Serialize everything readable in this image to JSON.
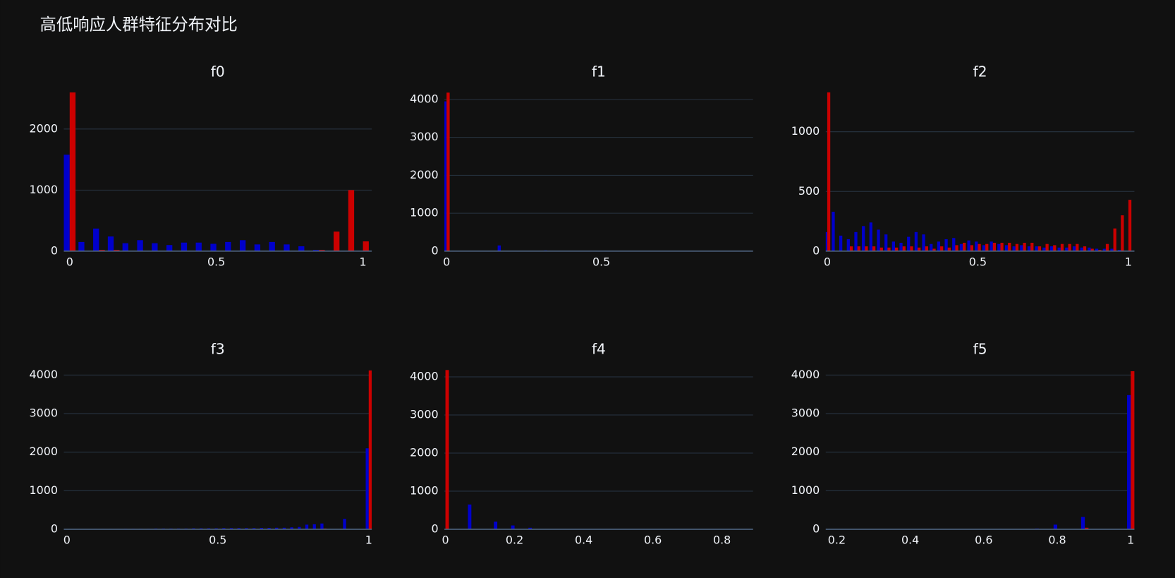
{
  "title": "高低响应人群特征分布对比",
  "chart_data": [
    {
      "type": "bar",
      "title": "f0",
      "x": [
        0,
        0.05,
        0.1,
        0.15,
        0.2,
        0.25,
        0.3,
        0.35,
        0.4,
        0.45,
        0.5,
        0.55,
        0.6,
        0.65,
        0.7,
        0.75,
        0.8,
        0.85,
        0.9,
        0.95,
        1
      ],
      "series": [
        {
          "color": "#0000cc",
          "values": [
            1580,
            150,
            370,
            240,
            130,
            180,
            130,
            100,
            140,
            140,
            120,
            150,
            180,
            110,
            150,
            110,
            80,
            20,
            0,
            0,
            0
          ]
        },
        {
          "color": "#cc0000",
          "values": [
            2600,
            0,
            20,
            20,
            0,
            0,
            0,
            0,
            0,
            0,
            0,
            0,
            0,
            0,
            0,
            0,
            0,
            20,
            320,
            1000,
            160
          ]
        }
      ],
      "xlim": [
        -0.02,
        1.03
      ],
      "ylim": [
        0,
        2640
      ],
      "xticks": [
        0,
        0.5,
        1
      ],
      "yticks": [
        0,
        1000,
        2000
      ],
      "grid": true
    },
    {
      "type": "bar",
      "title": "f1",
      "x": [
        0,
        0.025,
        0.05,
        0.075,
        0.1,
        0.125,
        0.15,
        0.175,
        0.2,
        0.225,
        0.25,
        0.275,
        0.3,
        0.325,
        0.35,
        0.375,
        0.4,
        0.425,
        0.45,
        0.475,
        0.5,
        0.525,
        0.55,
        0.575,
        0.6,
        0.625,
        0.65,
        0.675,
        0.7,
        0.725,
        0.75,
        0.775,
        0.8,
        0.825,
        0.85,
        0.875,
        0.9,
        0.925,
        0.95,
        0.975
      ],
      "series": [
        {
          "color": "#0000cc",
          "values": [
            3950,
            0,
            0,
            0,
            0,
            0,
            0,
            150,
            0,
            0,
            0,
            0,
            0,
            20,
            0,
            0,
            0,
            0,
            0,
            0,
            0,
            0,
            0,
            0,
            0,
            0,
            0,
            0,
            0,
            0,
            0,
            0,
            0,
            0,
            0,
            0,
            0,
            0,
            0,
            0
          ]
        },
        {
          "color": "#cc0000",
          "values": [
            4180,
            0,
            0,
            0,
            0,
            0,
            0,
            10,
            0,
            0,
            0,
            0,
            0,
            0,
            0,
            0,
            0,
            15,
            0,
            0,
            0,
            0,
            0,
            0,
            0,
            0,
            0,
            0,
            0,
            0,
            0,
            0,
            0,
            0,
            0,
            0,
            0,
            0,
            0,
            0
          ]
        }
      ],
      "xlim": [
        -0.007,
        0.99
      ],
      "ylim": [
        0,
        4250
      ],
      "xticks": [
        0,
        0.5
      ],
      "yticks": [
        0,
        1000,
        2000,
        3000,
        4000
      ],
      "grid": true
    },
    {
      "type": "bar",
      "title": "f2",
      "x": [
        0,
        0.025,
        0.05,
        0.075,
        0.1,
        0.125,
        0.15,
        0.175,
        0.2,
        0.225,
        0.25,
        0.275,
        0.3,
        0.325,
        0.35,
        0.375,
        0.4,
        0.425,
        0.45,
        0.475,
        0.5,
        0.525,
        0.55,
        0.575,
        0.6,
        0.625,
        0.65,
        0.675,
        0.7,
        0.725,
        0.75,
        0.775,
        0.8,
        0.825,
        0.85,
        0.875,
        0.9,
        0.925,
        0.95,
        0.975,
        1
      ],
      "series": [
        {
          "color": "#0000cc",
          "values": [
            160,
            330,
            130,
            100,
            160,
            210,
            240,
            180,
            140,
            80,
            70,
            120,
            160,
            140,
            60,
            80,
            100,
            110,
            60,
            90,
            80,
            50,
            80,
            60,
            50,
            40,
            50,
            40,
            40,
            30,
            40,
            30,
            30,
            40,
            30,
            30,
            20,
            20,
            20,
            10,
            0
          ]
        },
        {
          "color": "#cc0000",
          "values": [
            1330,
            0,
            0,
            40,
            40,
            40,
            40,
            30,
            30,
            30,
            40,
            40,
            30,
            40,
            20,
            40,
            30,
            50,
            70,
            50,
            60,
            60,
            70,
            70,
            70,
            60,
            70,
            70,
            40,
            60,
            50,
            60,
            60,
            60,
            40,
            20,
            10,
            60,
            190,
            300,
            430
          ]
        }
      ],
      "xlim": [
        -0.005,
        1.02
      ],
      "ylim": [
        0,
        1350
      ],
      "xticks": [
        0,
        0.5,
        1
      ],
      "yticks": [
        0,
        500,
        1000
      ],
      "grid": true
    },
    {
      "type": "bar",
      "title": "f3",
      "x": [
        0,
        0.025,
        0.05,
        0.075,
        0.1,
        0.125,
        0.15,
        0.175,
        0.2,
        0.225,
        0.25,
        0.275,
        0.3,
        0.325,
        0.35,
        0.375,
        0.4,
        0.425,
        0.45,
        0.475,
        0.5,
        0.525,
        0.55,
        0.575,
        0.6,
        0.625,
        0.65,
        0.675,
        0.7,
        0.725,
        0.75,
        0.775,
        0.8,
        0.825,
        0.85,
        0.875,
        0.9,
        0.925,
        0.95,
        0.975,
        1
      ],
      "series": [
        {
          "color": "#0000cc",
          "values": [
            5,
            5,
            5,
            5,
            10,
            10,
            10,
            10,
            15,
            15,
            15,
            15,
            20,
            20,
            20,
            20,
            20,
            25,
            25,
            25,
            25,
            30,
            30,
            30,
            30,
            30,
            35,
            35,
            40,
            40,
            50,
            60,
            120,
            130,
            150,
            10,
            0,
            270,
            0,
            0,
            2100
          ]
        },
        {
          "color": "#cc0000",
          "values": [
            0,
            0,
            0,
            0,
            0,
            0,
            0,
            0,
            0,
            0,
            0,
            0,
            0,
            0,
            0,
            0,
            0,
            0,
            0,
            0,
            0,
            0,
            0,
            0,
            0,
            0,
            0,
            0,
            0,
            0,
            0,
            0,
            0,
            0,
            20,
            0,
            0,
            0,
            0,
            0,
            4120
          ]
        }
      ],
      "xlim": [
        -0.01,
        1.01
      ],
      "ylim": [
        0,
        4200
      ],
      "xticks": [
        0,
        0.5,
        1
      ],
      "yticks": [
        0,
        1000,
        2000,
        3000,
        4000
      ],
      "grid": true
    },
    {
      "type": "bar",
      "title": "f4",
      "x": [
        0,
        0.025,
        0.05,
        0.075,
        0.1,
        0.125,
        0.15,
        0.175,
        0.2,
        0.225,
        0.25,
        0.275,
        0.3,
        0.325,
        0.35,
        0.375,
        0.4,
        0.425,
        0.45,
        0.475,
        0.5,
        0.525,
        0.55,
        0.575,
        0.6,
        0.625,
        0.65,
        0.675,
        0.7,
        0.725,
        0.75,
        0.775,
        0.8,
        0.825,
        0.85,
        0.875
      ],
      "series": [
        {
          "color": "#0000cc",
          "values": [
            0,
            0,
            0,
            650,
            0,
            0,
            200,
            0,
            100,
            0,
            40,
            10,
            10,
            10,
            10,
            10,
            10,
            10,
            10,
            10,
            10,
            10,
            10,
            10,
            10,
            10,
            10,
            10,
            10,
            10,
            10,
            10,
            10,
            10,
            10,
            10
          ]
        },
        {
          "color": "#cc0000",
          "values": [
            4180,
            0,
            0,
            0,
            0,
            0,
            0,
            0,
            0,
            0,
            0,
            0,
            0,
            0,
            0,
            0,
            0,
            0,
            0,
            0,
            0,
            0,
            0,
            0,
            0,
            0,
            0,
            0,
            0,
            0,
            0,
            0,
            0,
            0,
            0,
            0
          ]
        }
      ],
      "xlim": [
        -0.003,
        0.89
      ],
      "ylim": [
        0,
        4250
      ],
      "xticks": [
        0,
        0.2,
        0.4,
        0.6,
        0.8
      ],
      "yticks": [
        0,
        1000,
        2000,
        3000,
        4000
      ],
      "grid": true
    },
    {
      "type": "bar",
      "title": "f5",
      "x": [
        0.175,
        0.2,
        0.225,
        0.25,
        0.275,
        0.3,
        0.325,
        0.35,
        0.375,
        0.4,
        0.425,
        0.45,
        0.475,
        0.5,
        0.525,
        0.55,
        0.575,
        0.6,
        0.625,
        0.65,
        0.675,
        0.7,
        0.725,
        0.75,
        0.775,
        0.8,
        0.825,
        0.85,
        0.875,
        0.9,
        0.925,
        0.95,
        0.975,
        1
      ],
      "series": [
        {
          "color": "#0000cc",
          "values": [
            0,
            0,
            0,
            0,
            0,
            0,
            0,
            0,
            0,
            0,
            0,
            0,
            0,
            0,
            0,
            0,
            0,
            0,
            0,
            10,
            0,
            0,
            10,
            20,
            0,
            120,
            0,
            0,
            320,
            0,
            0,
            0,
            0,
            3480
          ]
        },
        {
          "color": "#cc0000",
          "values": [
            0,
            0,
            0,
            0,
            0,
            0,
            0,
            0,
            0,
            0,
            0,
            0,
            0,
            0,
            0,
            0,
            0,
            0,
            0,
            0,
            0,
            0,
            0,
            0,
            0,
            0,
            0,
            0,
            40,
            0,
            0,
            0,
            0,
            4100
          ]
        }
      ],
      "xlim": [
        0.17,
        1.01
      ],
      "ylim": [
        0,
        4200
      ],
      "xticks": [
        0.2,
        0.4,
        0.6,
        0.8,
        1
      ],
      "yticks": [
        0,
        1000,
        2000,
        3000,
        4000
      ],
      "grid": true
    }
  ]
}
